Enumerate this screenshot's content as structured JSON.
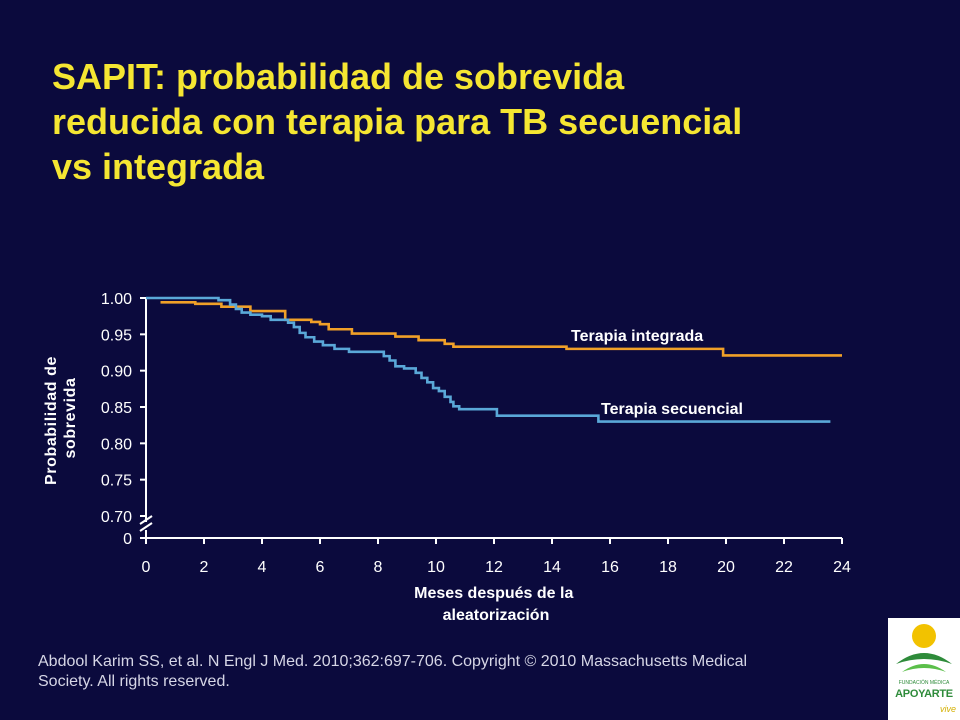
{
  "slide": {
    "title_lines": [
      "SAPIT: probabilidad de sobrevida",
      "reducida con terapia para TB secuencial",
      "vs integrada"
    ],
    "citation_lines": [
      "Abdool Karim SS, et al. N Engl J Med. 2010;362:697-706. Copyright ©  2010 Massachusetts Medical",
      "Society. All rights reserved."
    ],
    "logo": {
      "name": "APOYARTE",
      "sub": "FUNDACIÓN MÉDICA",
      "tagline": "vive"
    }
  },
  "colors": {
    "background": "#0b0a3d",
    "title": "#f5e632",
    "axis_text": "#ffffff",
    "integrada": "#f0a028",
    "secuencial": "#5aa8d8"
  },
  "chart_data": {
    "type": "line",
    "step": true,
    "xlabel": "Meses después de la aleatorización",
    "ylabel": "Probabilidad de sobrevida",
    "xlim": [
      0,
      24
    ],
    "ylim": [
      0.7,
      1.0
    ],
    "axis_break": true,
    "y_zero_label": "0",
    "x_ticks": [
      0,
      2,
      4,
      6,
      8,
      10,
      12,
      14,
      16,
      18,
      20,
      22,
      24
    ],
    "y_ticks": [
      "1.00",
      "0.95",
      "0.90",
      "0.85",
      "0.80",
      "0.75",
      "0.70"
    ],
    "grid": false,
    "legend": "inline labels",
    "series": [
      {
        "name": "Terapia integrada",
        "x": [
          0.5,
          0.5,
          1.7,
          2.6,
          3.6,
          4.8,
          5.7,
          6.0,
          6.3,
          7.1,
          8.6,
          9.4,
          10.3,
          10.6,
          14.5,
          19.9,
          24.0
        ],
        "y": [
          0.994,
          0.994,
          0.992,
          0.988,
          0.982,
          0.97,
          0.967,
          0.964,
          0.957,
          0.951,
          0.947,
          0.942,
          0.937,
          0.933,
          0.93,
          0.921,
          0.921
        ]
      },
      {
        "name": "Terapia secuencial",
        "x": [
          0,
          2.5,
          2.9,
          3.1,
          3.3,
          3.6,
          4.0,
          4.3,
          4.9,
          5.1,
          5.3,
          5.5,
          5.8,
          6.1,
          6.5,
          7.0,
          8.2,
          8.4,
          8.6,
          8.9,
          9.3,
          9.5,
          9.7,
          9.9,
          10.1,
          10.3,
          10.5,
          10.6,
          10.8,
          12.1,
          15.6,
          23.6
        ],
        "y": [
          1.0,
          0.997,
          0.991,
          0.985,
          0.98,
          0.977,
          0.975,
          0.97,
          0.966,
          0.96,
          0.952,
          0.946,
          0.94,
          0.935,
          0.93,
          0.926,
          0.92,
          0.914,
          0.906,
          0.903,
          0.897,
          0.89,
          0.884,
          0.876,
          0.872,
          0.864,
          0.857,
          0.851,
          0.847,
          0.838,
          0.83,
          0.83
        ]
      }
    ]
  }
}
